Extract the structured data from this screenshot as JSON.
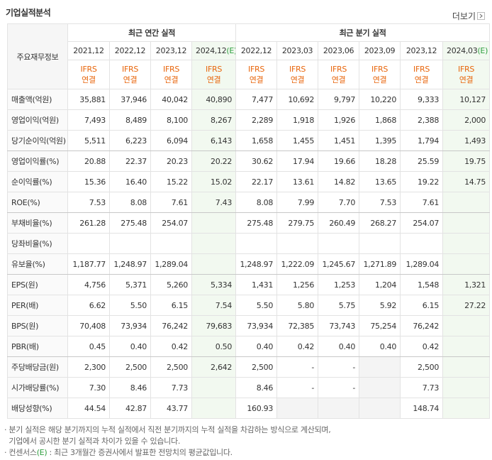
{
  "header": {
    "title": "기업실적분석",
    "more": "더보기"
  },
  "table": {
    "corner": "주요재무정보",
    "groups": [
      {
        "title": "최근 연간 실적"
      },
      {
        "title": "최근 분기 실적"
      }
    ],
    "columns": [
      {
        "period": "2021,12",
        "standard": "IFRS",
        "basis": "연결"
      },
      {
        "period": "2022,12",
        "standard": "IFRS",
        "basis": "연결"
      },
      {
        "period": "2023,12",
        "standard": "IFRS",
        "basis": "연결"
      },
      {
        "period": "2024,12",
        "estimate": "(E)",
        "standard": "IFRS",
        "basis": "연결"
      },
      {
        "period": "2022,12",
        "standard": "IFRS",
        "basis": "연결"
      },
      {
        "period": "2023,03",
        "standard": "IFRS",
        "basis": "연결"
      },
      {
        "period": "2023,06",
        "standard": "IFRS",
        "basis": "연결"
      },
      {
        "period": "2023,09",
        "standard": "IFRS",
        "basis": "연결"
      },
      {
        "period": "2023,12",
        "standard": "IFRS",
        "basis": "연결"
      },
      {
        "period": "2024,03",
        "estimate": "(E)",
        "standard": "IFRS",
        "basis": "연결"
      }
    ],
    "rows": [
      {
        "label": "매출액(억원)",
        "values": [
          "35,881",
          "37,946",
          "40,042",
          "40,890",
          "7,477",
          "10,692",
          "9,797",
          "10,220",
          "9,333",
          "10,127"
        ]
      },
      {
        "label": "영업이익(억원)",
        "values": [
          "7,493",
          "8,489",
          "8,100",
          "8,267",
          "2,289",
          "1,918",
          "1,926",
          "1,868",
          "2,388",
          "2,000"
        ]
      },
      {
        "label": "당기순이익(억원)",
        "values": [
          "5,511",
          "6,223",
          "6,094",
          "6,143",
          "1,658",
          "1,455",
          "1,451",
          "1,395",
          "1,794",
          "1,493"
        ]
      },
      {
        "label": "영업이익률(%)",
        "values": [
          "20.88",
          "22.37",
          "20.23",
          "20.22",
          "30.62",
          "17.94",
          "19.66",
          "18.28",
          "25.59",
          "19.75"
        ]
      },
      {
        "label": "순이익률(%)",
        "values": [
          "15.36",
          "16.40",
          "15.22",
          "15.02",
          "22.17",
          "13.61",
          "14.82",
          "13.65",
          "19.22",
          "14.75"
        ]
      },
      {
        "label": "ROE(%)",
        "values": [
          "7.53",
          "8.08",
          "7.61",
          "7.43",
          "8.08",
          "7.99",
          "7.70",
          "7.53",
          "7.61",
          null
        ]
      },
      {
        "label": "부채비율(%)",
        "values": [
          "261.28",
          "275.48",
          "254.07",
          null,
          "275.48",
          "279.75",
          "260.49",
          "268.27",
          "254.07",
          null
        ]
      },
      {
        "label": "당좌비율(%)",
        "values": [
          null,
          null,
          null,
          null,
          null,
          null,
          null,
          null,
          null,
          null
        ]
      },
      {
        "label": "유보율(%)",
        "values": [
          "1,187.77",
          "1,248.97",
          "1,289.04",
          null,
          "1,248.97",
          "1,222.09",
          "1,245.67",
          "1,271.89",
          "1,289.04",
          null
        ]
      },
      {
        "label": "EPS(원)",
        "values": [
          "4,756",
          "5,371",
          "5,260",
          "5,334",
          "1,431",
          "1,256",
          "1,253",
          "1,204",
          "1,548",
          "1,321"
        ]
      },
      {
        "label": "PER(배)",
        "values": [
          "6.62",
          "5.50",
          "6.15",
          "7.54",
          "5.50",
          "5.80",
          "5.75",
          "5.92",
          "6.15",
          "27.22"
        ]
      },
      {
        "label": "BPS(원)",
        "values": [
          "70,408",
          "73,934",
          "76,242",
          "79,683",
          "73,934",
          "72,385",
          "73,743",
          "75,254",
          "76,242",
          null
        ]
      },
      {
        "label": "PBR(배)",
        "values": [
          "0.45",
          "0.40",
          "0.42",
          "0.50",
          "0.40",
          "0.42",
          "0.40",
          "0.40",
          "0.42",
          null
        ]
      },
      {
        "label": "주당배당금(원)",
        "values": [
          "2,300",
          "2,500",
          "2,500",
          "2,642",
          "2,500",
          "-",
          "-",
          null,
          "2,500",
          null
        ]
      },
      {
        "label": "시가배당률(%)",
        "values": [
          "7.30",
          "8.46",
          "7.73",
          null,
          "8.46",
          "-",
          "-",
          null,
          "7.73",
          null
        ]
      },
      {
        "label": "배당성향(%)",
        "values": [
          "44.54",
          "42.87",
          "43.77",
          null,
          "160.93",
          null,
          null,
          null,
          "148.74",
          null
        ]
      }
    ]
  },
  "notes": [
    {
      "text": "분기 실적은 해당 분기까지의 누적 실적에서 직전 분기까지의 누적 실적을 차감하는 방식으로 계산되며,"
    },
    {
      "text": "기업에서 공시한 분기 실적과 차이가 있을 수 있습니다."
    },
    {
      "prefix": "컨센서스",
      "mark": "(E)",
      "text": " : 최근 3개월간 증권사에서 발표한 전망치의 평균값입니다."
    }
  ]
}
